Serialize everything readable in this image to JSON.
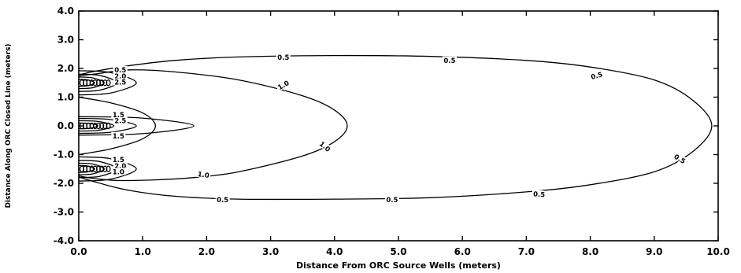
{
  "chart_data": {
    "type": "contour",
    "xlabel": "Distance From ORC Source Wells (meters)",
    "ylabel": "Distance Along ORC Closed Line (meters)",
    "xlim": [
      0.0,
      10.0
    ],
    "ylim": [
      -4.0,
      4.0
    ],
    "x_ticks": [
      "0.0",
      "1.0",
      "2.0",
      "3.0",
      "4.0",
      "5.0",
      "6.0",
      "7.0",
      "8.0",
      "9.0",
      "10.0"
    ],
    "y_ticks": [
      "4.0",
      "3.0",
      "2.0",
      "1.0",
      "0.0",
      "-1.0",
      "-2.0",
      "-3.0",
      "-4.0"
    ],
    "wells_y": [
      1.5,
      0.0,
      -1.5
    ],
    "contours": [
      {
        "level": "0.5",
        "points": [
          [
            0.0,
            1.78
          ],
          [
            0.3,
            1.92
          ],
          [
            0.8,
            2.1
          ],
          [
            1.5,
            2.28
          ],
          [
            2.5,
            2.4
          ],
          [
            4.0,
            2.45
          ],
          [
            5.5,
            2.42
          ],
          [
            7.0,
            2.28
          ],
          [
            8.0,
            2.05
          ],
          [
            9.0,
            1.6
          ],
          [
            9.6,
            0.9
          ],
          [
            9.9,
            0.0
          ],
          [
            9.6,
            -0.9
          ],
          [
            9.0,
            -1.6
          ],
          [
            8.0,
            -2.05
          ],
          [
            7.0,
            -2.3
          ],
          [
            5.5,
            -2.5
          ],
          [
            4.0,
            -2.55
          ],
          [
            2.5,
            -2.55
          ],
          [
            1.5,
            -2.45
          ],
          [
            0.8,
            -2.25
          ],
          [
            0.3,
            -1.98
          ],
          [
            0.0,
            -1.78
          ]
        ]
      },
      {
        "level": "1.0",
        "points": [
          [
            0.0,
            1.74
          ],
          [
            0.3,
            1.82
          ],
          [
            0.8,
            1.95
          ],
          [
            1.5,
            1.88
          ],
          [
            2.5,
            1.6
          ],
          [
            3.5,
            1.05
          ],
          [
            4.0,
            0.55
          ],
          [
            4.2,
            0.0
          ],
          [
            4.0,
            -0.55
          ],
          [
            3.5,
            -1.05
          ],
          [
            2.5,
            -1.6
          ],
          [
            1.8,
            -1.8
          ],
          [
            1.2,
            -1.88
          ],
          [
            0.6,
            -1.9
          ],
          [
            0.2,
            -1.82
          ],
          [
            0.0,
            -1.74
          ]
        ]
      },
      {
        "level": "1.5",
        "points": [
          [
            0.0,
            1.0
          ],
          [
            0.5,
            0.8
          ],
          [
            1.0,
            0.45
          ],
          [
            1.2,
            0.0
          ],
          [
            1.0,
            -0.45
          ],
          [
            0.5,
            -0.8
          ],
          [
            0.0,
            -1.0
          ]
        ]
      }
    ],
    "well_lobes": [
      {
        "center": 1.5,
        "widths": [
          0.9,
          0.6,
          0.4,
          0.25
        ],
        "heights": [
          0.42,
          0.3,
          0.2,
          0.12
        ]
      },
      {
        "center": 0.0,
        "widths": [
          1.8,
          0.9,
          0.55,
          0.3
        ],
        "heights": [
          0.32,
          0.26,
          0.18,
          0.1
        ]
      },
      {
        "center": -1.5,
        "widths": [
          0.9,
          0.6,
          0.4,
          0.25
        ],
        "heights": [
          0.42,
          0.3,
          0.2,
          0.12
        ]
      }
    ],
    "contour_labels": [
      {
        "text": "0.5",
        "x": 0.65,
        "y": 1.95,
        "angle": 0
      },
      {
        "text": "0.5",
        "x": 3.2,
        "y": 2.38,
        "angle": 0
      },
      {
        "text": "0.5",
        "x": 5.8,
        "y": 2.28,
        "angle": 0
      },
      {
        "text": "0.5",
        "x": 8.1,
        "y": 1.75,
        "angle": 15
      },
      {
        "text": "0.5",
        "x": 9.4,
        "y": -1.15,
        "angle": -30
      },
      {
        "text": "0.5",
        "x": 7.2,
        "y": -2.38,
        "angle": -5
      },
      {
        "text": "0.5",
        "x": 4.9,
        "y": -2.58,
        "angle": 0
      },
      {
        "text": "0.5",
        "x": 2.25,
        "y": -2.58,
        "angle": 0
      },
      {
        "text": "1.0",
        "x": 3.2,
        "y": 1.42,
        "angle": 30
      },
      {
        "text": "1.0",
        "x": 3.85,
        "y": -0.72,
        "angle": -40
      },
      {
        "text": "1.0",
        "x": 1.95,
        "y": -1.7,
        "angle": -8
      },
      {
        "text": "2.0",
        "x": 0.65,
        "y": 1.72,
        "angle": 0
      },
      {
        "text": "2.5",
        "x": 0.65,
        "y": 1.52,
        "angle": 0
      },
      {
        "text": "2.5",
        "x": 0.65,
        "y": 0.18,
        "angle": 0
      },
      {
        "text": "1.5",
        "x": 0.62,
        "y": 0.38,
        "angle": 0
      },
      {
        "text": "1.5",
        "x": 0.62,
        "y": -0.35,
        "angle": 0
      },
      {
        "text": "1.5",
        "x": 0.62,
        "y": -1.18,
        "angle": 0
      },
      {
        "text": "2.0",
        "x": 0.65,
        "y": -1.4,
        "angle": 0
      },
      {
        "text": "1.0",
        "x": 0.62,
        "y": -1.6,
        "angle": 0
      }
    ]
  }
}
